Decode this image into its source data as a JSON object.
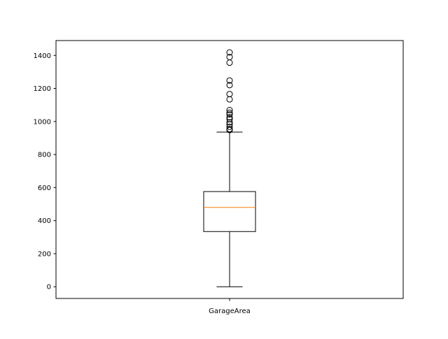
{
  "chart_data": {
    "type": "box",
    "title": "",
    "xlabel": "",
    "ylabel": "",
    "categories": [
      "GarageArea"
    ],
    "ylim": [
      -70.9,
      1489.9
    ],
    "yticks": [
      0,
      200,
      400,
      600,
      800,
      1000,
      1200,
      1400
    ],
    "grid": false,
    "box": {
      "whisker_low": 0,
      "q1": 334,
      "median": 480,
      "q3": 576,
      "whisker_high": 936
    },
    "outliers": [
      1418,
      1390,
      1356,
      1248,
      1220,
      1166,
      1134,
      1069,
      1053,
      1043,
      1025,
      1014,
      995,
      983,
      968,
      954,
      948
    ],
    "colors": {
      "median": "#ff7f0e",
      "box": "#000000",
      "flier": "#000000"
    }
  }
}
